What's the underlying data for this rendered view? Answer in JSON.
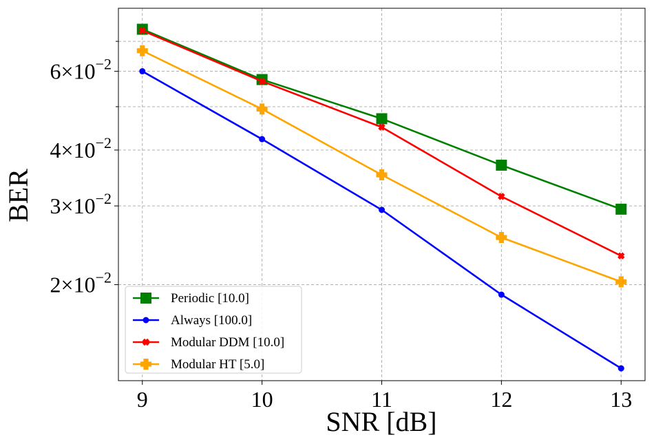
{
  "chart_data": {
    "type": "line",
    "xlabel": "SNR [dB]",
    "ylabel": "BER",
    "yscale": "log",
    "grid": true,
    "legend_position": "lower-left",
    "xlim": [
      8.8,
      13.2
    ],
    "ylim": [
      0.0122,
      0.083
    ],
    "x": [
      9,
      10,
      11,
      12,
      13
    ],
    "xticks": [
      {
        "value": 9,
        "label": "9"
      },
      {
        "value": 10,
        "label": "10"
      },
      {
        "value": 11,
        "label": "11"
      },
      {
        "value": 12,
        "label": "12"
      },
      {
        "value": 13,
        "label": "13"
      }
    ],
    "yticks": [
      {
        "value": 0.02,
        "mant": "2",
        "times": "×",
        "base": "10",
        "exp": "−2"
      },
      {
        "value": 0.03,
        "mant": "3",
        "times": "×",
        "base": "10",
        "exp": "−2"
      },
      {
        "value": 0.04,
        "mant": "4",
        "times": "×",
        "base": "10",
        "exp": "−2"
      },
      {
        "value": 0.06,
        "mant": "6",
        "times": "×",
        "base": "10",
        "exp": "−2"
      }
    ],
    "minor_gridlines": [
      0.05,
      0.07
    ],
    "series": [
      {
        "name": "Periodic [10.0]",
        "color": "#008000",
        "marker": "square",
        "values": [
          0.0745,
          0.0575,
          0.047,
          0.037,
          0.0295
        ]
      },
      {
        "name": "Always [100.0]",
        "color": "#0000ff",
        "marker": "circle",
        "values": [
          0.06,
          0.0423,
          0.0294,
          0.019,
          0.013
        ]
      },
      {
        "name": "Modular DDM [10.0]",
        "color": "#ff0000",
        "marker": "x",
        "values": [
          0.074,
          0.057,
          0.045,
          0.0315,
          0.0232
        ]
      },
      {
        "name": "Modular HT [5.0]",
        "color": "#ffa500",
        "marker": "plus",
        "values": [
          0.0667,
          0.0494,
          0.0352,
          0.0255,
          0.0203
        ]
      }
    ]
  }
}
